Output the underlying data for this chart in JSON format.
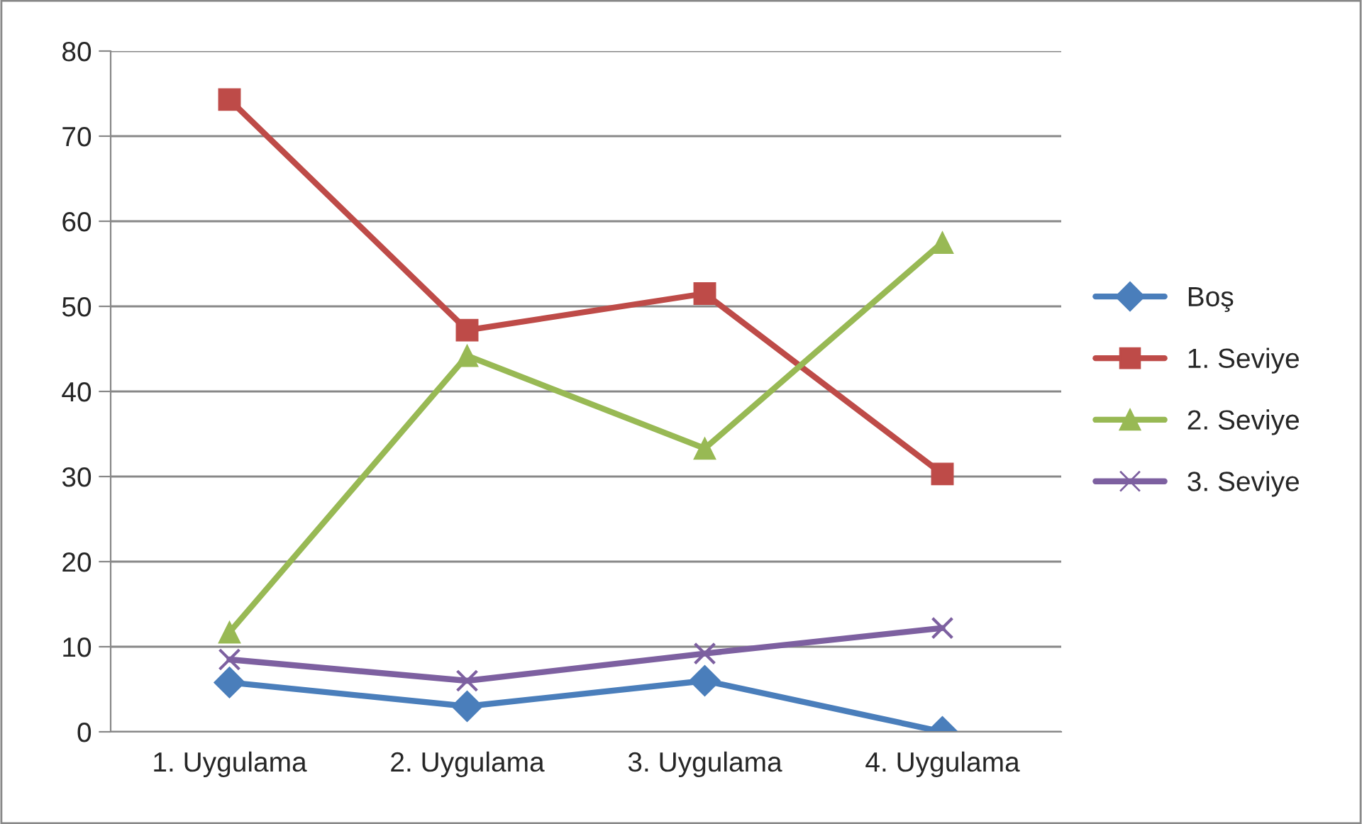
{
  "chart_data": {
    "type": "line",
    "categories": [
      "1. Uygulama",
      "2. Uygulama",
      "3. Uygulama",
      "4. Uygulama"
    ],
    "series": [
      {
        "name": "Boş",
        "color": "#4a7ebb",
        "marker": "diamond",
        "values": [
          5.8,
          3.0,
          6.0,
          0.0
        ]
      },
      {
        "name": "1. Seviye",
        "color": "#be4b48",
        "marker": "square",
        "values": [
          74.3,
          47.2,
          51.5,
          30.3
        ]
      },
      {
        "name": "2. Seviye",
        "color": "#98b954",
        "marker": "triangle",
        "values": [
          11.7,
          44.2,
          33.3,
          57.5
        ]
      },
      {
        "name": "3. Seviye",
        "color": "#7d60a0",
        "marker": "cross",
        "values": [
          8.5,
          6.0,
          9.2,
          12.2
        ]
      }
    ],
    "ylim": [
      0,
      80
    ],
    "yticks": [
      0,
      10,
      20,
      30,
      40,
      50,
      60,
      70,
      80
    ],
    "grid": "y",
    "legend": "right",
    "line_style": "solid"
  }
}
